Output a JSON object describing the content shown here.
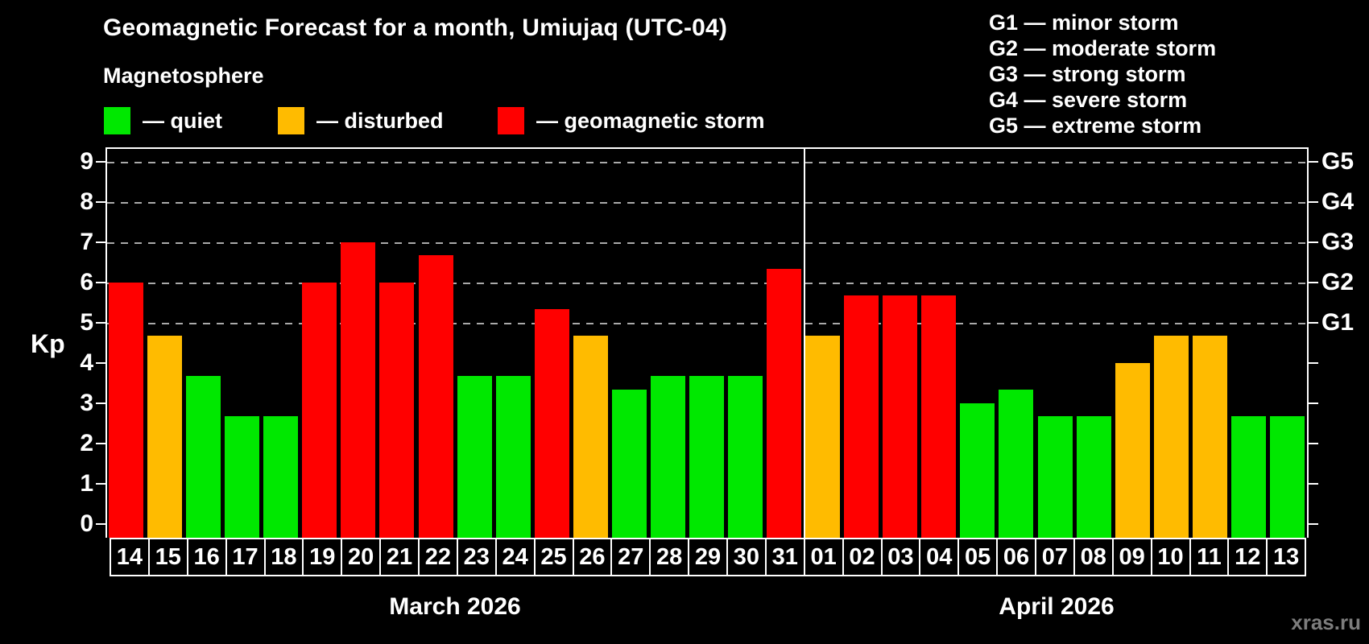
{
  "title": "Geomagnetic Forecast for a month, Umiujaq (UTC-04)",
  "subtitle": "Magnetosphere",
  "legend": {
    "quiet": {
      "label": "— quiet",
      "color": "#00e800"
    },
    "disturbed": {
      "label": "— disturbed",
      "color": "#ffbb00"
    },
    "storm": {
      "label": "— geomagnetic storm",
      "color": "#ff0000"
    }
  },
  "g_scale_legend": [
    "G1 — minor storm",
    "G2 — moderate storm",
    "G3 — strong storm",
    "G4 — severe storm",
    "G5 — extreme storm"
  ],
  "axis": {
    "y_label": "Kp",
    "y_ticks": [
      0,
      1,
      2,
      3,
      4,
      5,
      6,
      7,
      8,
      9
    ],
    "g_labels": [
      "G1",
      "G2",
      "G3",
      "G4",
      "G5"
    ]
  },
  "months": [
    {
      "name": "March 2026",
      "days": [
        "14",
        "15",
        "16",
        "17",
        "18",
        "19",
        "20",
        "21",
        "22",
        "23",
        "24",
        "25",
        "26",
        "27",
        "28",
        "29",
        "30",
        "31"
      ]
    },
    {
      "name": "April 2026",
      "days": [
        "01",
        "02",
        "03",
        "04",
        "05",
        "06",
        "07",
        "08",
        "09",
        "10",
        "11",
        "12",
        "13"
      ]
    }
  ],
  "watermark": "xras.ru",
  "chart_data": {
    "type": "bar",
    "title": "Geomagnetic Forecast for a month, Umiujaq (UTC-04)",
    "subtitle": "Magnetosphere",
    "ylabel": "Kp",
    "ylim": [
      0,
      9.4
    ],
    "grid": "dashed horizontal at Kp 5-9 only",
    "gridlines_at": [
      5,
      6,
      7,
      8,
      9
    ],
    "right_axis_labels": {
      "5": "G1",
      "6": "G2",
      "7": "G3",
      "8": "G4",
      "9": "G5"
    },
    "categories": [
      "Mar 14",
      "Mar 15",
      "Mar 16",
      "Mar 17",
      "Mar 18",
      "Mar 19",
      "Mar 20",
      "Mar 21",
      "Mar 22",
      "Mar 23",
      "Mar 24",
      "Mar 25",
      "Mar 26",
      "Mar 27",
      "Mar 28",
      "Mar 29",
      "Mar 30",
      "Mar 31",
      "Apr 01",
      "Apr 02",
      "Apr 03",
      "Apr 04",
      "Apr 05",
      "Apr 06",
      "Apr 07",
      "Apr 08",
      "Apr 09",
      "Apr 10",
      "Apr 11",
      "Apr 12",
      "Apr 13"
    ],
    "values": [
      6.0,
      4.67,
      3.67,
      2.67,
      2.67,
      6.0,
      7.0,
      6.0,
      6.67,
      3.67,
      3.67,
      5.33,
      4.67,
      3.33,
      3.67,
      3.67,
      3.67,
      6.33,
      4.67,
      5.67,
      5.67,
      5.67,
      3.0,
      3.33,
      2.67,
      2.67,
      4.0,
      4.67,
      4.67,
      2.67,
      2.67
    ],
    "levels": [
      "storm",
      "disturbed",
      "quiet",
      "quiet",
      "quiet",
      "storm",
      "storm",
      "storm",
      "storm",
      "quiet",
      "quiet",
      "storm",
      "disturbed",
      "quiet",
      "quiet",
      "quiet",
      "quiet",
      "storm",
      "disturbed",
      "storm",
      "storm",
      "storm",
      "quiet",
      "quiet",
      "quiet",
      "quiet",
      "disturbed",
      "disturbed",
      "disturbed",
      "quiet",
      "quiet"
    ],
    "level_colors": {
      "quiet": "#00e800",
      "disturbed": "#ffbb00",
      "storm": "#ff0000"
    },
    "legend_position": "top-left",
    "march_days_count": 18
  }
}
